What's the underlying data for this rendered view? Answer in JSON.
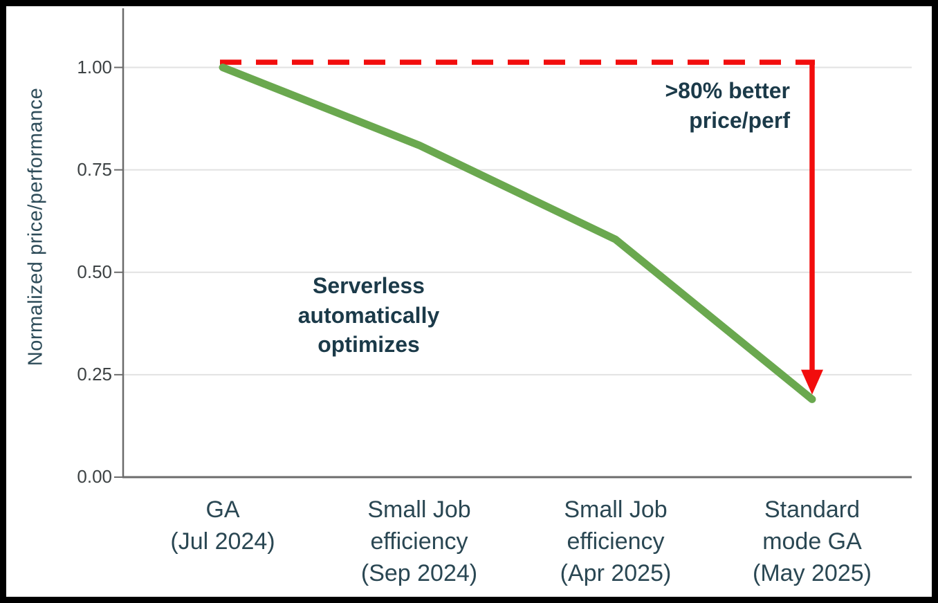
{
  "chart_data": {
    "type": "line",
    "title": "",
    "xlabel": "",
    "ylabel": "Normalized price/performance",
    "categories": [
      "GA\n(Jul 2024)",
      "Small Job\nefficiency\n(Sep 2024)",
      "Small Job\nefficiency\n(Apr 2025)",
      "Standard\nmode GA\n(May 2025)"
    ],
    "series": [
      {
        "name": "Normalized price/performance",
        "color": "#6aa84f",
        "values": [
          1.0,
          0.81,
          0.58,
          0.19
        ]
      }
    ],
    "yticks": [
      0,
      0.25,
      0.5,
      0.75,
      1.0
    ],
    "ytick_labels": [
      "0.00",
      "0.25",
      "0.50",
      "0.75",
      "1.00"
    ],
    "ylim": [
      0,
      1.12
    ],
    "grid": true,
    "legend": false,
    "baseline": {
      "value": 1.0,
      "style": "dashed",
      "color": "#f20d0d"
    },
    "drop_arrow": {
      "color": "#f20d0d",
      "from_value": 1.0,
      "to_value": 0.21
    },
    "annotations": [
      {
        "id": "serverless-note",
        "text": "Serverless\nautomatically\noptimizes"
      },
      {
        "id": "better-note",
        "text": ">80% better\nprice/perf"
      }
    ],
    "colors": {
      "line_green": "#6aa84f",
      "accent_red": "#f20d0d",
      "annotation_navy": "#1b3a49",
      "axis_label_navy": "#2a4753",
      "tick_gray": "#3d4244",
      "gridline": "#e2e2e2",
      "axis_line": "#6b6b6b",
      "frame_border": "#000000"
    }
  }
}
